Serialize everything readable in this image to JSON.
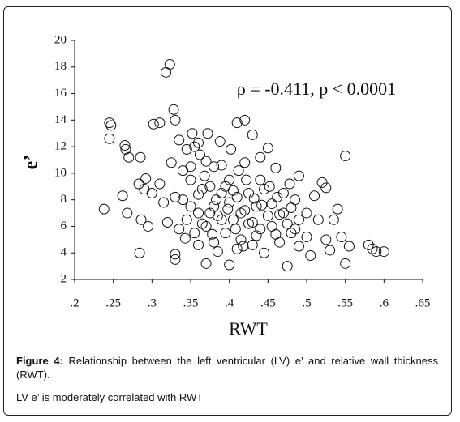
{
  "chart_data": {
    "type": "scatter",
    "annotation": "ρ = -0.411, p < 0.0001",
    "x_label": "RWT",
    "y_label": "e’",
    "xlim": [
      0.2,
      0.65
    ],
    "ylim": [
      2,
      20
    ],
    "xticks": [
      {
        "value": 0.2,
        "label": ".2"
      },
      {
        "value": 0.25,
        "label": ".25"
      },
      {
        "value": 0.3,
        "label": ".3"
      },
      {
        "value": 0.35,
        "label": ".35"
      },
      {
        "value": 0.4,
        "label": ".4"
      },
      {
        "value": 0.45,
        "label": ".45"
      },
      {
        "value": 0.5,
        "label": ".5"
      },
      {
        "value": 0.55,
        "label": ".55"
      },
      {
        "value": 0.6,
        "label": ".6"
      },
      {
        "value": 0.65,
        "label": ".65"
      }
    ],
    "yticks": [
      2,
      4,
      6,
      8,
      10,
      12,
      14,
      16,
      18,
      20
    ],
    "color": "#111111",
    "x": [
      0.245,
      0.247,
      0.245,
      0.238,
      0.262,
      0.265,
      0.266,
      0.268,
      0.27,
      0.283,
      0.284,
      0.286,
      0.285,
      0.29,
      0.292,
      0.295,
      0.3,
      0.302,
      0.31,
      0.318,
      0.323,
      0.328,
      0.33,
      0.33,
      0.33,
      0.335,
      0.34,
      0.343,
      0.35,
      0.352,
      0.355,
      0.36,
      0.362,
      0.365,
      0.368,
      0.37,
      0.372,
      0.375,
      0.378,
      0.38,
      0.383,
      0.385,
      0.388,
      0.39,
      0.395,
      0.398,
      0.4,
      0.402,
      0.405,
      0.408,
      0.41,
      0.412,
      0.415,
      0.418,
      0.42,
      0.422,
      0.425,
      0.43,
      0.432,
      0.435,
      0.44,
      0.442,
      0.445,
      0.45,
      0.452,
      0.455,
      0.46,
      0.462,
      0.465,
      0.47,
      0.475,
      0.478,
      0.48,
      0.485,
      0.49,
      0.49,
      0.49,
      0.5,
      0.5,
      0.505,
      0.51,
      0.515,
      0.52,
      0.525,
      0.525,
      0.53,
      0.535,
      0.54,
      0.545,
      0.55,
      0.55,
      0.555,
      0.58,
      0.59,
      0.6,
      0.585,
      0.34,
      0.345,
      0.35,
      0.355,
      0.36,
      0.365,
      0.37,
      0.375,
      0.38,
      0.385,
      0.39,
      0.395,
      0.4,
      0.405,
      0.41,
      0.415,
      0.42,
      0.425,
      0.43,
      0.435,
      0.44,
      0.445,
      0.45,
      0.455,
      0.46,
      0.465,
      0.47,
      0.475,
      0.48,
      0.485,
      0.31,
      0.315,
      0.32,
      0.325,
      0.33,
      0.335,
      0.35,
      0.36,
      0.37,
      0.38,
      0.39,
      0.4,
      0.41,
      0.42,
      0.43,
      0.44,
      0.36,
      0.345
    ],
    "values": [
      13.8,
      13.6,
      12.6,
      7.3,
      8.3,
      12.1,
      11.8,
      7.0,
      11.2,
      9.2,
      4.0,
      6.5,
      11.2,
      8.8,
      9.6,
      6.0,
      8.5,
      13.7,
      13.8,
      17.6,
      18.2,
      14.8,
      14.0,
      3.5,
      3.9,
      12.5,
      10.2,
      5.1,
      7.5,
      13.0,
      12.0,
      8.4,
      11.4,
      6.2,
      9.8,
      3.2,
      13.0,
      7.0,
      5.4,
      10.5,
      8.0,
      4.1,
      12.4,
      6.5,
      9.0,
      7.3,
      3.1,
      11.8,
      8.7,
      5.8,
      13.8,
      10.2,
      7.0,
      4.5,
      14.0,
      9.5,
      6.2,
      12.9,
      8.1,
      5.3,
      11.2,
      7.6,
      4.0,
      11.9,
      9.0,
      6.0,
      10.4,
      8.2,
      4.8,
      7.0,
      3.0,
      9.2,
      5.5,
      8.0,
      9.8,
      6.5,
      4.5,
      7.0,
      5.2,
      3.8,
      8.3,
      6.5,
      9.3,
      5.0,
      8.9,
      4.2,
      6.5,
      7.3,
      5.2,
      11.3,
      3.2,
      4.5,
      4.6,
      4.1,
      4.1,
      4.3,
      8.0,
      6.5,
      9.5,
      5.5,
      7.0,
      8.8,
      6.0,
      9.0,
      7.5,
      6.8,
      8.5,
      5.5,
      7.8,
      6.5,
      8.2,
      5.0,
      7.2,
      8.5,
      6.3,
      7.5,
      5.8,
      8.8,
      6.8,
      7.7,
      5.4,
      6.9,
      8.5,
      6.2,
      7.4,
      5.8,
      9.2,
      7.8,
      6.3,
      10.8,
      8.2,
      5.8,
      10.5,
      4.6,
      10.9,
      4.8,
      10.6,
      9.5,
      4.3,
      10.8,
      4.6,
      9.5,
      12.3,
      11.8
    ]
  },
  "caption": {
    "label": "Figure 4:",
    "text": "Relationship between the left ventricular (LV) e’ and relative wall thickness (RWT).",
    "note": "LV e’ is moderately correlated with RWT"
  }
}
